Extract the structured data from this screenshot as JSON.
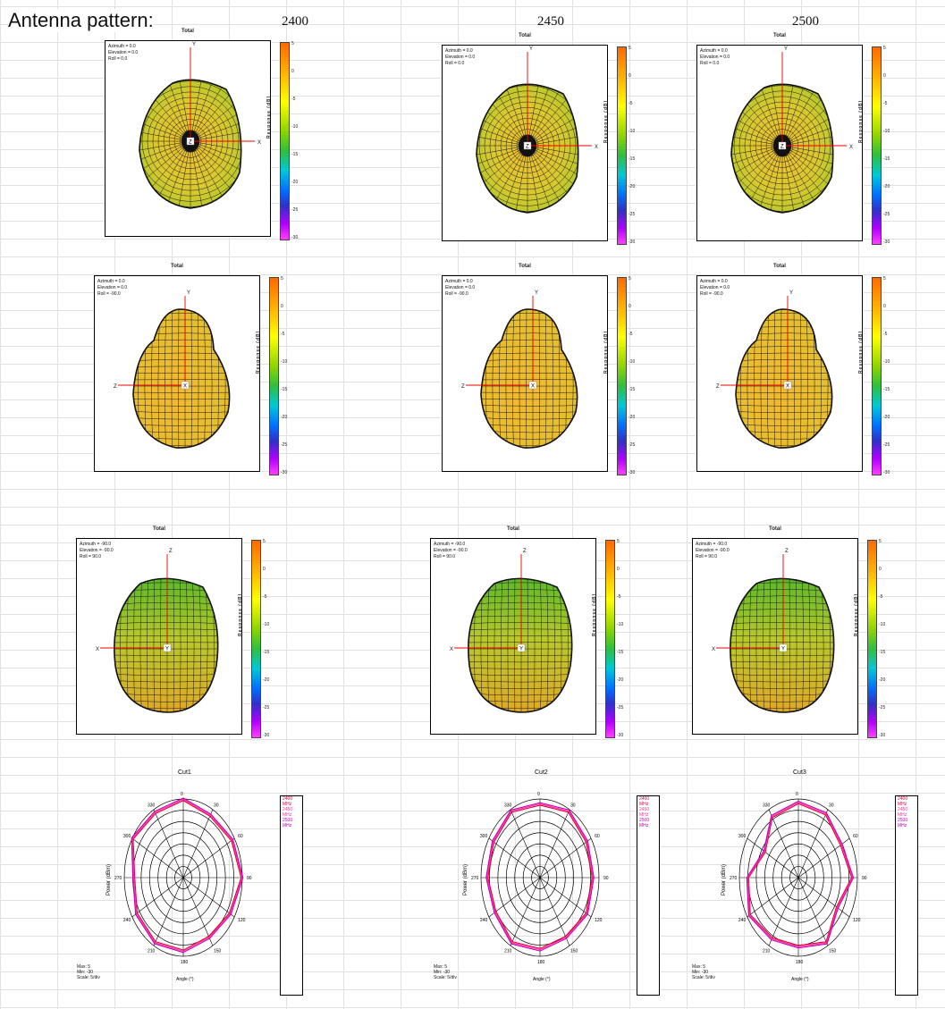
{
  "heading": "Antenna pattern:",
  "frequencies": [
    "2400",
    "2450",
    "2500"
  ],
  "panel_title": "Total",
  "colorbar": {
    "label": "Response (dB)",
    "ticks": [
      "5",
      "0",
      "-5",
      "-10",
      "-15",
      "-20",
      "-25",
      "-30"
    ]
  },
  "views": [
    {
      "azimuth": "Azimuth = 0.0",
      "elevation": "Elevation = 0.0",
      "roll": "Roll = 0.0",
      "axes": [
        "Y",
        "X",
        "Z"
      ]
    },
    {
      "azimuth": "Azimuth = 0.0",
      "elevation": "Elevation = 0.0",
      "roll": "Roll = -90.0",
      "axes": [
        "Y",
        "Z",
        "X"
      ]
    },
    {
      "azimuth": "Azimuth = -90.0",
      "elevation": "Elevation = -90.0",
      "roll": "Roll = 90.0",
      "axes": [
        "Z",
        "X",
        "Y"
      ]
    }
  ],
  "polar": {
    "titles": [
      "Cut1",
      "Cut2",
      "Cut3"
    ],
    "ylabel": "Power (dBm)",
    "xlabel": "Angle (°)",
    "angle_labels": [
      "0",
      "30",
      "60",
      "90",
      "120",
      "150",
      "180",
      "210",
      "240",
      "270",
      "300",
      "330"
    ],
    "legend": [
      "2400 MHz",
      "2450 MHz",
      "2500 MHz"
    ],
    "info": [
      "Max: 5",
      "Min: -30",
      "Scale: 5/div"
    ],
    "colors": {
      "2400": "#e8003c",
      "2450": "#ff3399",
      "2500": "#c000c0"
    }
  }
}
